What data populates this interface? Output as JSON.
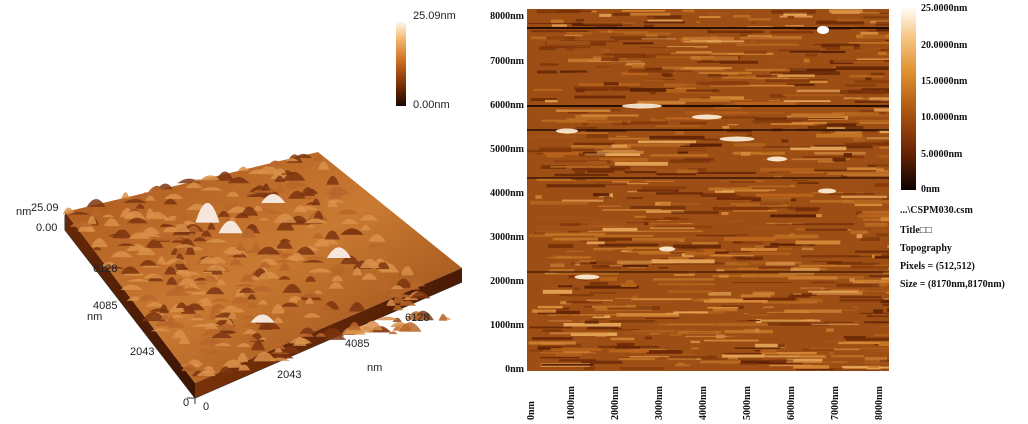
{
  "left_view": {
    "colorbar": {
      "max_label": "25.09nm",
      "min_label": "0.00nm"
    },
    "z_axis": {
      "unit": "nm",
      "max": "25.09",
      "min": "0.00"
    },
    "y_axis": {
      "unit": "nm",
      "ticks": [
        "6128",
        "4085",
        "2043",
        "0"
      ]
    },
    "x_axis": {
      "unit": "nm",
      "ticks": [
        "0",
        "2043",
        "4085",
        "6128"
      ]
    }
  },
  "right_view": {
    "y_ticks": [
      "8000nm",
      "7000nm",
      "6000nm",
      "5000nm",
      "4000nm",
      "3000nm",
      "2000nm",
      "1000nm",
      "0nm"
    ],
    "x_ticks": [
      "0nm",
      "1000nm",
      "2000nm",
      "3000nm",
      "4000nm",
      "5000nm",
      "6000nm",
      "7000nm",
      "8000nm"
    ],
    "colorbar_ticks": [
      "25.0000nm",
      "20.0000nm",
      "15.0000nm",
      "10.0000nm",
      "5.0000nm",
      "0nm"
    ],
    "info": {
      "file": "...\\CSPM030.csm",
      "title": "Title□□",
      "type": "Topography",
      "pixels": "Pixels = (512,512)",
      "size": "Size = (8170nm,8170nm)"
    }
  }
}
